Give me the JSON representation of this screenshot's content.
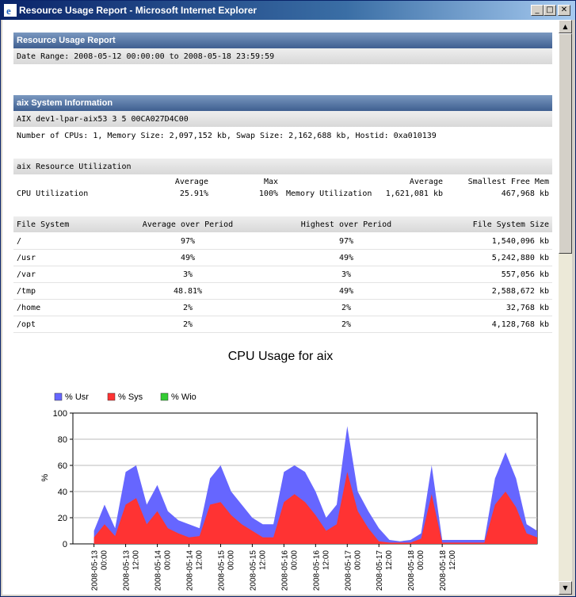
{
  "window": {
    "title": "Resource Usage Report - Microsoft Internet Explorer"
  },
  "report": {
    "title": "Resource Usage Report",
    "date_range": "Date Range: 2008-05-12 00:00:00 to 2008-05-18 23:59:59"
  },
  "system_info": {
    "header": "aix System Information",
    "host_line": "AIX dev1-lpar-aix53 3 5 00CA027D4C00",
    "details": "Number of CPUs: 1, Memory Size: 2,097,152 kb, Swap Size: 2,162,688 kb, Hostid: 0xa010139"
  },
  "utilization": {
    "header": "aix Resource Utilization",
    "col_average": "Average",
    "col_max": "Max",
    "col_average2": "Average",
    "col_smallest_free": "Smallest Free Mem",
    "cpu_label": "CPU Utilization",
    "cpu_average": "25.91%",
    "cpu_max": "100%",
    "mem_label": "Memory Utilization",
    "mem_average": "1,621,081 kb",
    "mem_smallest_free": "467,968 kb"
  },
  "filesystems": {
    "headers": {
      "fs": "File System",
      "avg": "Average over Period",
      "high": "Highest over Period",
      "size": "File System Size"
    },
    "rows": [
      {
        "fs": "/",
        "avg": "97%",
        "high": "97%",
        "size": "1,540,096 kb"
      },
      {
        "fs": "/usr",
        "avg": "49%",
        "high": "49%",
        "size": "5,242,880 kb"
      },
      {
        "fs": "/var",
        "avg": "3%",
        "high": "3%",
        "size": "557,056 kb"
      },
      {
        "fs": "/tmp",
        "avg": "48.81%",
        "high": "49%",
        "size": "2,588,672 kb"
      },
      {
        "fs": "/home",
        "avg": "2%",
        "high": "2%",
        "size": "32,768 kb"
      },
      {
        "fs": "/opt",
        "avg": "2%",
        "high": "2%",
        "size": "4,128,768 kb"
      }
    ]
  },
  "chart_data": {
    "type": "area",
    "title": "CPU Usage for aix",
    "ylabel": "%",
    "xlabel": "",
    "ylim": [
      0,
      100
    ],
    "yticks": [
      "0",
      "20",
      "40",
      "60",
      "80",
      "100"
    ],
    "grid": true,
    "legend_position": "top-left",
    "xtick_labels": [
      "2008-05-13 00:00",
      "2008-05-13 12:00",
      "2008-05-14 00:00",
      "2008-05-14 12:00",
      "2008-05-15 00:00",
      "2008-05-15 12:00",
      "2008-05-16 00:00",
      "2008-05-16 12:00",
      "2008-05-17 00:00",
      "2008-05-17 12:00",
      "2008-05-18 00:00",
      "2008-05-18 12:00"
    ],
    "series": [
      {
        "name": "% Usr",
        "color": "#6666ff"
      },
      {
        "name": "% Sys",
        "color": "#ff3333"
      },
      {
        "name": "% Wio",
        "color": "#33cc33"
      }
    ],
    "x_hours": [
      0,
      4,
      8,
      12,
      16,
      20,
      24,
      28,
      32,
      36,
      40,
      44,
      48,
      52,
      56,
      60,
      64,
      68,
      72,
      76,
      80,
      84,
      88,
      92,
      96,
      100,
      104,
      108,
      112,
      116,
      120,
      124,
      128,
      132,
      136,
      140,
      144,
      148,
      152,
      156,
      160,
      164,
      168
    ],
    "total": [
      10,
      30,
      12,
      55,
      60,
      30,
      45,
      25,
      18,
      15,
      12,
      50,
      60,
      40,
      30,
      20,
      15,
      15,
      55,
      60,
      55,
      40,
      20,
      30,
      90,
      40,
      25,
      12,
      3,
      2,
      3,
      8,
      60,
      3,
      3,
      3,
      3,
      3,
      50,
      70,
      50,
      15,
      10
    ],
    "sys": [
      5,
      15,
      6,
      30,
      35,
      15,
      25,
      12,
      8,
      5,
      6,
      30,
      32,
      22,
      15,
      10,
      5,
      5,
      32,
      38,
      32,
      22,
      10,
      15,
      55,
      25,
      12,
      2,
      1,
      1,
      1,
      4,
      38,
      1,
      1,
      1,
      1,
      1,
      30,
      40,
      28,
      8,
      5
    ],
    "wio": [
      0,
      0,
      0,
      0,
      0,
      0,
      0,
      0,
      0,
      0,
      0,
      0,
      0,
      0,
      0,
      0,
      0,
      0,
      0,
      0,
      0,
      0,
      0,
      0,
      0,
      0,
      0,
      0,
      0,
      0,
      0,
      0,
      0,
      0,
      0,
      0,
      0,
      0,
      0,
      0,
      0,
      0,
      0
    ]
  }
}
